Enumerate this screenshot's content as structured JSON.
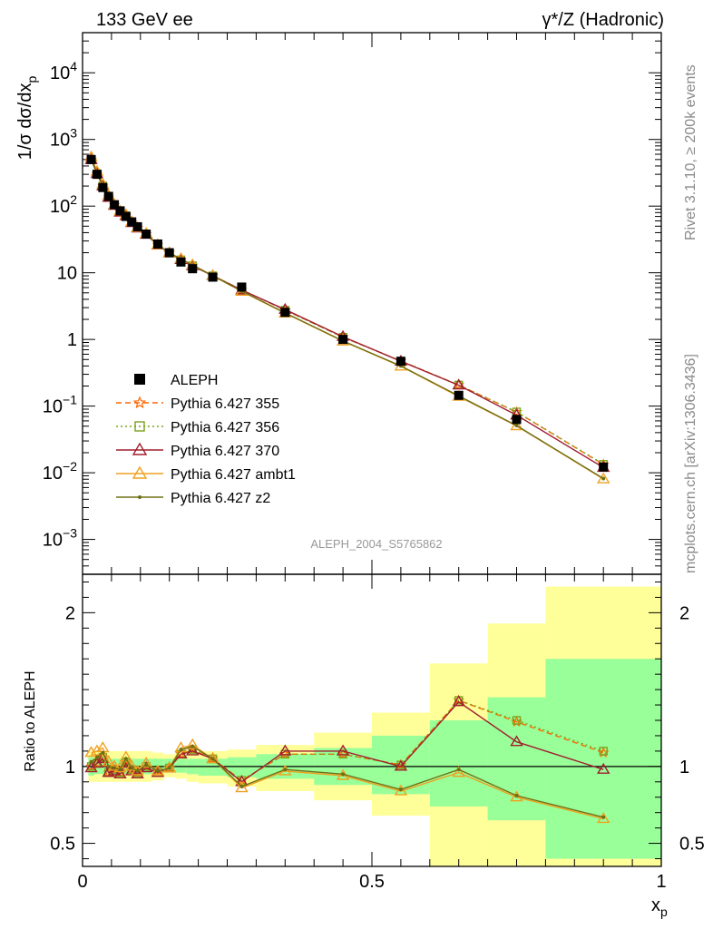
{
  "header": {
    "left": "133 GeV ee",
    "right": "γ*/Z (Hadronic)"
  },
  "side_texts": {
    "rivet": "Rivet 3.1.10, ≥ 200k events",
    "mcplots": "mcplots.cern.ch [arXiv:1306.3436]"
  },
  "watermark": "ALEPH_2004_S5765862",
  "ratio_ylabel": "Ratio to ALEPH",
  "chart_data": {
    "type": "line",
    "xlabel": "x_p",
    "ylabel": "1/σ dσ/dx_p",
    "x_range": [
      0,
      1
    ],
    "y_range_main": [
      0.0003,
      40000
    ],
    "y_scale_main": "log",
    "y_range_ratio": [
      0.35,
      2.25
    ],
    "x_ticks": [
      "0",
      "0.5",
      "1"
    ],
    "y_ticks_main": [
      "10^-3",
      "10^-2",
      "10^-1",
      "1",
      "10",
      "10^2",
      "10^3",
      "10^4"
    ],
    "y_ticks_ratio": [
      "0.5",
      "1",
      "2"
    ],
    "legend_position": "middle-left",
    "x": [
      0.015,
      0.025,
      0.035,
      0.045,
      0.055,
      0.065,
      0.075,
      0.085,
      0.095,
      0.11,
      0.13,
      0.15,
      0.17,
      0.19,
      0.225,
      0.275,
      0.35,
      0.45,
      0.55,
      0.65,
      0.75,
      0.9
    ],
    "bin_edges": [
      0.01,
      0.02,
      0.03,
      0.04,
      0.05,
      0.06,
      0.07,
      0.08,
      0.09,
      0.1,
      0.12,
      0.14,
      0.16,
      0.18,
      0.2,
      0.25,
      0.3,
      0.4,
      0.5,
      0.6,
      0.7,
      0.8,
      1.0
    ],
    "series": [
      {
        "name": "ALEPH",
        "marker": "square",
        "color": "#000000",
        "values": [
          500,
          300,
          190,
          140,
          105,
          85,
          70,
          58,
          49,
          38,
          27,
          20,
          14.5,
          11.5,
          8.6,
          6.1,
          2.55,
          1.0,
          0.47,
          0.145,
          0.063,
          0.0122
        ],
        "ratio_band_green": [
          0.94,
          0.95,
          0.95,
          0.95,
          0.95,
          0.95,
          0.95,
          0.95,
          0.95,
          0.95,
          0.96,
          0.97,
          0.96,
          0.95,
          0.94,
          0.93,
          0.92,
          0.88,
          0.82,
          0.74,
          0.65,
          0.4
        ],
        "ratio_band_green_hi": [
          1.06,
          1.05,
          1.05,
          1.05,
          1.05,
          1.05,
          1.05,
          1.05,
          1.05,
          1.05,
          1.05,
          1.05,
          1.05,
          1.05,
          1.05,
          1.06,
          1.08,
          1.12,
          1.2,
          1.3,
          1.45,
          1.7
        ],
        "ratio_band_yellow": [
          0.9,
          0.9,
          0.9,
          0.9,
          0.9,
          0.9,
          0.9,
          0.9,
          0.9,
          0.9,
          0.91,
          0.93,
          0.92,
          0.9,
          0.89,
          0.87,
          0.84,
          0.78,
          0.68,
          0.35,
          0.35,
          0.35
        ],
        "ratio_band_yellow_hi": [
          1.1,
          1.1,
          1.1,
          1.1,
          1.1,
          1.1,
          1.1,
          1.1,
          1.1,
          1.1,
          1.09,
          1.08,
          1.1,
          1.1,
          1.1,
          1.11,
          1.14,
          1.22,
          1.35,
          1.67,
          1.93,
          2.17
        ]
      },
      {
        "name": "Pythia 6.427 355",
        "marker": "star",
        "color": "#ff6600",
        "dash": "6,4",
        "ratio": [
          1.0,
          1.02,
          1.06,
          0.96,
          0.98,
          0.96,
          1.03,
          0.98,
          0.96,
          1.0,
          0.97,
          0.99,
          1.08,
          1.11,
          1.05,
          0.91,
          1.08,
          1.08,
          1.01,
          1.43,
          1.29,
          1.09
        ]
      },
      {
        "name": "Pythia 6.427 356",
        "marker": "open-square",
        "color": "#7ba31a",
        "dash": "2,3",
        "ratio": [
          1.0,
          1.02,
          1.06,
          0.96,
          0.98,
          0.96,
          1.03,
          0.98,
          0.96,
          1.0,
          0.97,
          0.99,
          1.08,
          1.11,
          1.05,
          0.91,
          1.08,
          1.08,
          1.01,
          1.43,
          1.3,
          1.1
        ]
      },
      {
        "name": "Pythia 6.427 370",
        "marker": "open-triangle",
        "color": "#a01f2f",
        "dash": "",
        "ratio": [
          0.99,
          1.02,
          1.05,
          0.96,
          0.97,
          0.95,
          1.02,
          0.97,
          0.95,
          0.99,
          0.96,
          0.99,
          1.08,
          1.1,
          1.05,
          0.9,
          1.1,
          1.1,
          1.0,
          1.42,
          1.16,
          0.98
        ]
      },
      {
        "name": "Pythia 6.427 ambt1",
        "marker": "open-triangle",
        "color": "#f0a020",
        "dash": "",
        "ratio": [
          1.09,
          1.1,
          1.12,
          1.03,
          1.0,
          0.99,
          1.06,
          1.0,
          0.97,
          1.02,
          0.97,
          0.99,
          1.12,
          1.14,
          1.05,
          0.86,
          0.97,
          0.94,
          0.84,
          0.96,
          0.8,
          0.66
        ]
      },
      {
        "name": "Pythia 6.427 z2",
        "marker": "dot",
        "color": "#6e7016",
        "dash": "",
        "ratio": [
          1.03,
          1.06,
          1.09,
          1.0,
          0.99,
          0.98,
          1.05,
          0.99,
          0.97,
          1.01,
          0.97,
          0.99,
          1.11,
          1.13,
          1.05,
          0.87,
          0.98,
          0.95,
          0.85,
          0.98,
          0.81,
          0.67
        ]
      }
    ]
  }
}
